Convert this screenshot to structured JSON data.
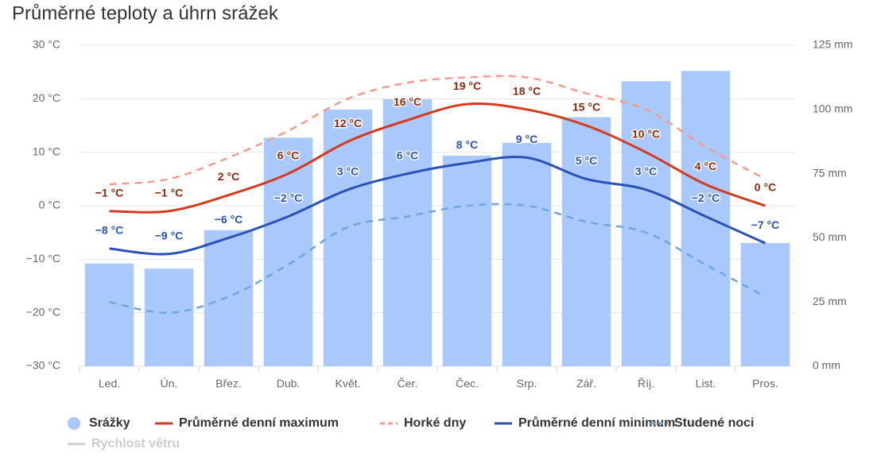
{
  "chart_data": {
    "type": "combo",
    "title": "Průměrné teploty a úhrn srážek",
    "categories": [
      "Led.",
      "Ún.",
      "Břez.",
      "Dub.",
      "Květ.",
      "Čer.",
      "Čec.",
      "Srp.",
      "Zář.",
      "Říj.",
      "List.",
      "Pros."
    ],
    "ylim": [
      -30,
      30
    ],
    "yticks": [
      {
        "value": -30,
        "label": "−30 °C"
      },
      {
        "value": -20,
        "label": "−20 °C"
      },
      {
        "value": -10,
        "label": "−10 °C"
      },
      {
        "value": 0,
        "label": "0 °C"
      },
      {
        "value": 10,
        "label": "10 °C"
      },
      {
        "value": 20,
        "label": "20 °C"
      },
      {
        "value": 30,
        "label": "30 °C"
      }
    ],
    "y2lim": [
      0,
      125
    ],
    "y2ticks": [
      {
        "value": 0,
        "label": "0 mm"
      },
      {
        "value": 25,
        "label": "25 mm"
      },
      {
        "value": 50,
        "label": "50 mm"
      },
      {
        "value": 75,
        "label": "75 mm"
      },
      {
        "value": 100,
        "label": "100 mm"
      },
      {
        "value": 125,
        "label": "125 mm"
      }
    ],
    "grid": true,
    "legend": "bottom",
    "series": [
      {
        "name": "Srážky",
        "type": "bar",
        "axis": "y2",
        "color": "#a9c8fc",
        "values": [
          40,
          38,
          53,
          89,
          100,
          104,
          82,
          87,
          97,
          111,
          115,
          48
        ]
      },
      {
        "name": "Průměrné denní maximum",
        "type": "line",
        "color": "#d63a1e",
        "values": [
          -1,
          -1,
          2,
          6,
          12,
          16,
          19,
          18,
          15,
          10,
          4,
          0
        ],
        "value_labels": [
          "−1 °C",
          "−1 °C",
          "2 °C",
          "6 °C",
          "12 °C",
          "16 °C",
          "19 °C",
          "18 °C",
          "15 °C",
          "10 °C",
          "4 °C",
          "0 °C"
        ]
      },
      {
        "name": "Horké dny",
        "type": "line",
        "dashed": true,
        "color": "#f59b8c",
        "values": [
          4,
          5,
          9,
          14,
          20,
          23,
          24,
          24,
          21,
          18,
          11,
          5
        ]
      },
      {
        "name": "Průměrné denní minimum",
        "type": "line",
        "color": "#2a52b5",
        "values": [
          -8,
          -9,
          -6,
          -2,
          3,
          6,
          8,
          9,
          5,
          3,
          -2,
          -7
        ],
        "value_labels": [
          "−8 °C",
          "−9 °C",
          "−6 °C",
          "−2 °C",
          "3 °C",
          "6 °C",
          "8 °C",
          "9 °C",
          "5 °C",
          "3 °C",
          "−2 °C",
          "−7 °C"
        ]
      },
      {
        "name": "Studené noci",
        "type": "line",
        "dashed": true,
        "color": "#6ea6e0",
        "values": [
          -18,
          -20,
          -17,
          -11,
          -4,
          -2,
          0,
          0,
          -3,
          -5,
          -11,
          -17
        ]
      },
      {
        "name": "Rychlost větru",
        "type": "line",
        "visible": false,
        "color": "#cccccc",
        "values": [
          null,
          null,
          null,
          null,
          null,
          null,
          null,
          null,
          null,
          null,
          null,
          null
        ]
      }
    ]
  }
}
